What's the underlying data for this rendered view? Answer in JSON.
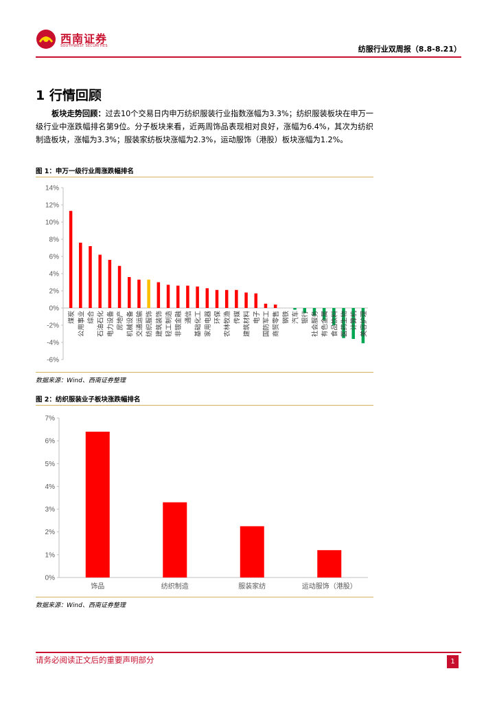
{
  "header": {
    "logo_name": "西南证券",
    "logo_english": "SOUTHWEST SECURITIES",
    "report_title": "纺服行业双周报（8.8-8.21）",
    "brand_color": "#c8102e"
  },
  "section": {
    "title": "1 行情回顾"
  },
  "paragraph": {
    "lead": "板块走势回顾：",
    "body": "过去10个交易日内申万纺织服装行业指数涨幅为3.3%；纺织服装板块在申万一级行业中涨跌幅排名第9位。分子板块来看，近两周饰品表现相对良好，涨幅为6.4%，其次为纺织制造板块，涨幅为3.3%；服装家纺板块涨幅为2.3%，运动服饰（港股）板块涨幅为1.2%。"
  },
  "figure1": {
    "title": "图 1：申万一级行业周涨跌幅排名",
    "source": "数据来源：Wind、西南证券整理"
  },
  "figure2": {
    "title": "图 2：纺织服装业子板块涨跌幅排名",
    "source": "数据来源：Wind、西南证券整理"
  },
  "footer": {
    "disclaimer": "请务必阅读正文后的重要声明部分",
    "page_number": "1"
  },
  "chart_data": [
    {
      "type": "bar",
      "title": "",
      "xlabel": "",
      "ylabel": "",
      "ylim": [
        -6,
        14
      ],
      "yticks": [
        "14%",
        "12%",
        "10%",
        "8%",
        "6%",
        "4%",
        "2%",
        "0%",
        "-2%",
        "-4%",
        "-6%"
      ],
      "categories": [
        "煤炭",
        "公用事业",
        "综合",
        "石油石化",
        "电力设备",
        "房地产",
        "机械设备",
        "交通运输",
        "纺织服饰",
        "建筑装饰",
        "轻工制造",
        "非银金融",
        "通信",
        "基础化工",
        "家用电器",
        "环保",
        "农林牧渔",
        "传媒",
        "建筑材料",
        "电子",
        "国防军工",
        "商贸零售",
        "钢铁",
        "汽车",
        "银行",
        "社会服务",
        "有色金属",
        "食品饮料",
        "医药生物",
        "计算机",
        "美容护理"
      ],
      "values": [
        11.3,
        7.6,
        7.2,
        6.2,
        5.6,
        4.9,
        3.6,
        3.3,
        3.3,
        3.0,
        2.7,
        2.6,
        2.6,
        2.5,
        2.3,
        2.1,
        2.1,
        2.1,
        1.8,
        1.7,
        0.5,
        0.4,
        0.0,
        -0.2,
        -0.6,
        -0.9,
        -1.4,
        -2.0,
        -3.5,
        -3.6,
        -4.1
      ],
      "colors": {
        "positive": "#ff0000",
        "highlight": "#ffc000",
        "negative": "#00a651"
      },
      "highlight_category": "纺织服饰",
      "grid": false
    },
    {
      "type": "bar",
      "title": "",
      "xlabel": "",
      "ylabel": "",
      "ylim": [
        0,
        7
      ],
      "yticks": [
        "7%",
        "6%",
        "5%",
        "4%",
        "3%",
        "2%",
        "1%",
        "0%"
      ],
      "categories": [
        "饰品",
        "纺织制造",
        "服装家纺",
        "运动服饰（港股）"
      ],
      "values": [
        6.4,
        3.3,
        2.25,
        1.2
      ],
      "color": "#ff0000",
      "grid": false
    }
  ]
}
